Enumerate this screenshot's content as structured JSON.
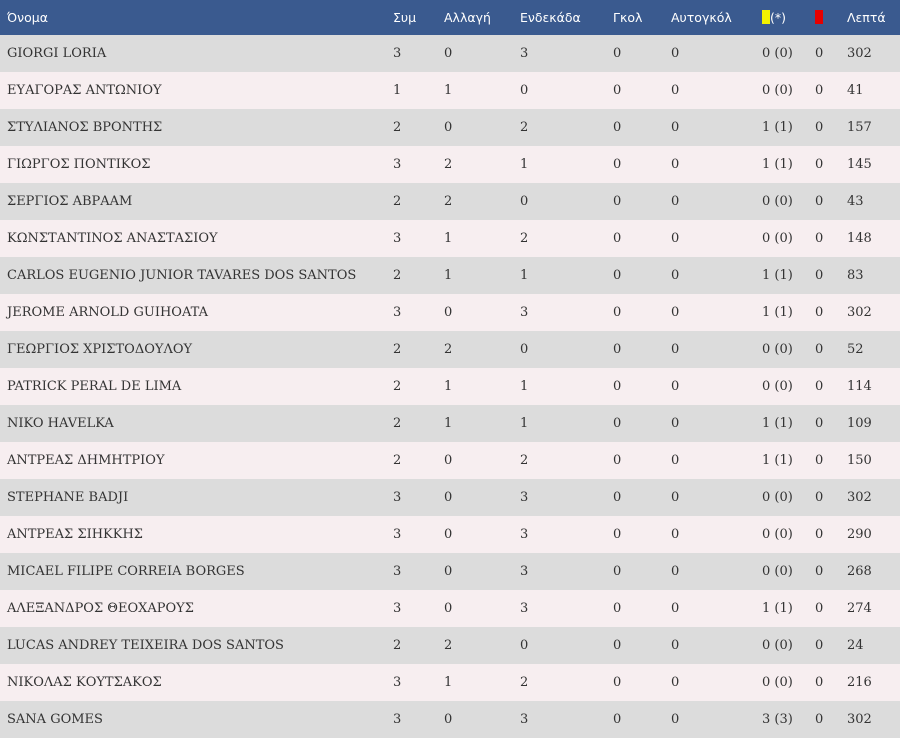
{
  "colors": {
    "header_bg": "#3a5a8f",
    "row_odd": "#dcdcdc",
    "row_even": "#f7eef0",
    "yellow_card": "#f2f200",
    "red_card": "#e60000"
  },
  "headers": {
    "name": "Όνομα",
    "apps": "Συμ",
    "sub": "Αλλαγή",
    "starting": "Ενδεκάδα",
    "goals": "Γκολ",
    "own_goals": "Αυτογκόλ",
    "yellow_icon": "yellow-card-icon",
    "yellow_suffix": "(*)",
    "red_icon": "red-card-icon",
    "minutes": "Λεπτά"
  },
  "rows": [
    {
      "name": "GIORGI LORIA",
      "apps": "3",
      "sub": "0",
      "starting": "3",
      "goals": "0",
      "own_goals": "0",
      "yellow": "0 (0)",
      "red": "0",
      "minutes": "302"
    },
    {
      "name": "ΕΥΑΓΟΡΑΣ ΑΝΤΩΝΙΟΥ",
      "apps": "1",
      "sub": "1",
      "starting": "0",
      "goals": "0",
      "own_goals": "0",
      "yellow": "0 (0)",
      "red": "0",
      "minutes": "41"
    },
    {
      "name": "ΣΤΥΛΙΑΝΟΣ ΒΡΟΝΤΗΣ",
      "apps": "2",
      "sub": "0",
      "starting": "2",
      "goals": "0",
      "own_goals": "0",
      "yellow": "1 (1)",
      "red": "0",
      "minutes": "157"
    },
    {
      "name": "ΓΙΩΡΓΟΣ ΠΟΝΤΙΚΟΣ",
      "apps": "3",
      "sub": "2",
      "starting": "1",
      "goals": "0",
      "own_goals": "0",
      "yellow": "1 (1)",
      "red": "0",
      "minutes": "145"
    },
    {
      "name": "ΣΕΡΓΙΟΣ ΑΒΡΑΑΜ",
      "apps": "2",
      "sub": "2",
      "starting": "0",
      "goals": "0",
      "own_goals": "0",
      "yellow": "0 (0)",
      "red": "0",
      "minutes": "43"
    },
    {
      "name": "ΚΩΝΣΤΑΝΤΙΝΟΣ ΑΝΑΣΤΑΣΙΟΥ",
      "apps": "3",
      "sub": "1",
      "starting": "2",
      "goals": "0",
      "own_goals": "0",
      "yellow": "0 (0)",
      "red": "0",
      "minutes": "148"
    },
    {
      "name": "CARLOS EUGENIO JUNIOR TAVARES DOS SANTOS",
      "apps": "2",
      "sub": "1",
      "starting": "1",
      "goals": "0",
      "own_goals": "0",
      "yellow": "1 (1)",
      "red": "0",
      "minutes": "83"
    },
    {
      "name": "JEROME ARNOLD GUIHOATA",
      "apps": "3",
      "sub": "0",
      "starting": "3",
      "goals": "0",
      "own_goals": "0",
      "yellow": "1 (1)",
      "red": "0",
      "minutes": "302"
    },
    {
      "name": "ΓΕΩΡΓΙΟΣ ΧΡΙΣΤΟΔΟΥΛΟΥ",
      "apps": "2",
      "sub": "2",
      "starting": "0",
      "goals": "0",
      "own_goals": "0",
      "yellow": "0 (0)",
      "red": "0",
      "minutes": "52"
    },
    {
      "name": "PATRICK PERAL DE LIMA",
      "apps": "2",
      "sub": "1",
      "starting": "1",
      "goals": "0",
      "own_goals": "0",
      "yellow": "0 (0)",
      "red": "0",
      "minutes": "114"
    },
    {
      "name": "NIKO HAVELKA",
      "apps": "2",
      "sub": "1",
      "starting": "1",
      "goals": "0",
      "own_goals": "0",
      "yellow": "1 (1)",
      "red": "0",
      "minutes": "109"
    },
    {
      "name": "ΑΝΤΡΕΑΣ ΔΗΜΗΤΡΙΟΥ",
      "apps": "2",
      "sub": "0",
      "starting": "2",
      "goals": "0",
      "own_goals": "0",
      "yellow": "1 (1)",
      "red": "0",
      "minutes": "150"
    },
    {
      "name": "STEPHANE BADJI",
      "apps": "3",
      "sub": "0",
      "starting": "3",
      "goals": "0",
      "own_goals": "0",
      "yellow": "0 (0)",
      "red": "0",
      "minutes": "302"
    },
    {
      "name": "ΑΝΤΡΕΑΣ ΣΙΗΚΚΗΣ",
      "apps": "3",
      "sub": "0",
      "starting": "3",
      "goals": "0",
      "own_goals": "0",
      "yellow": "0 (0)",
      "red": "0",
      "minutes": "290"
    },
    {
      "name": "MICAEL FILIPE CORREIA BORGES",
      "apps": "3",
      "sub": "0",
      "starting": "3",
      "goals": "0",
      "own_goals": "0",
      "yellow": "0 (0)",
      "red": "0",
      "minutes": "268"
    },
    {
      "name": "ΑΛΕΞΑΝΔΡΟΣ ΘΕΟΧΑΡΟΥΣ",
      "apps": "3",
      "sub": "0",
      "starting": "3",
      "goals": "0",
      "own_goals": "0",
      "yellow": "1 (1)",
      "red": "0",
      "minutes": "274"
    },
    {
      "name": "LUCAS ANDREY TEIXEIRA DOS SANTOS",
      "apps": "2",
      "sub": "2",
      "starting": "0",
      "goals": "0",
      "own_goals": "0",
      "yellow": "0 (0)",
      "red": "0",
      "minutes": "24"
    },
    {
      "name": "ΝΙΚΟΛΑΣ ΚΟΥΤΣΑΚΟΣ",
      "apps": "3",
      "sub": "1",
      "starting": "2",
      "goals": "0",
      "own_goals": "0",
      "yellow": "0 (0)",
      "red": "0",
      "minutes": "216"
    },
    {
      "name": "SANA GOMES",
      "apps": "3",
      "sub": "0",
      "starting": "3",
      "goals": "0",
      "own_goals": "0",
      "yellow": "3 (3)",
      "red": "0",
      "minutes": "302"
    }
  ]
}
